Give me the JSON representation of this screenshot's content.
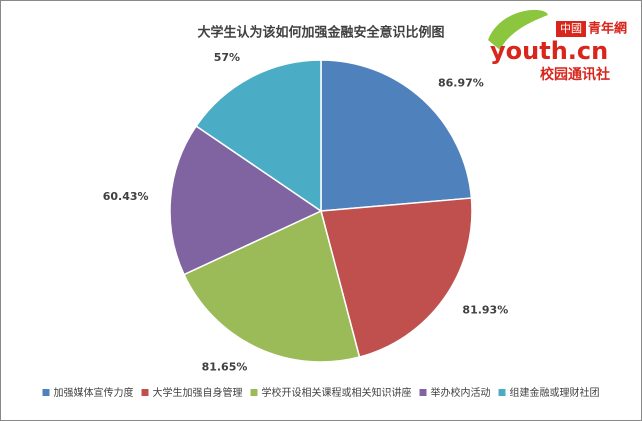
{
  "chart_data": {
    "type": "pie",
    "title": "大学生认为该如何加强金融安全意识比例图",
    "categories": [
      "加强媒体宣传力度",
      "大学生加强自身管理",
      "学校开设相关课程或相关知识讲座",
      "举办校内活动",
      "组建金融或理财社团"
    ],
    "values": [
      86.97,
      81.93,
      81.65,
      60.43,
      57
    ],
    "value_labels": [
      "86.97%",
      "81.93%",
      "81.65%",
      "60.43%",
      "57%"
    ],
    "colors": [
      "#4f81bd",
      "#c0504d",
      "#9bbb59",
      "#8064a2",
      "#4bacc6"
    ],
    "legend": "bottom"
  },
  "logo": {
    "brand": "中國",
    "name": "青年網",
    "site": "youth.cn",
    "unit": "校园通讯社"
  }
}
